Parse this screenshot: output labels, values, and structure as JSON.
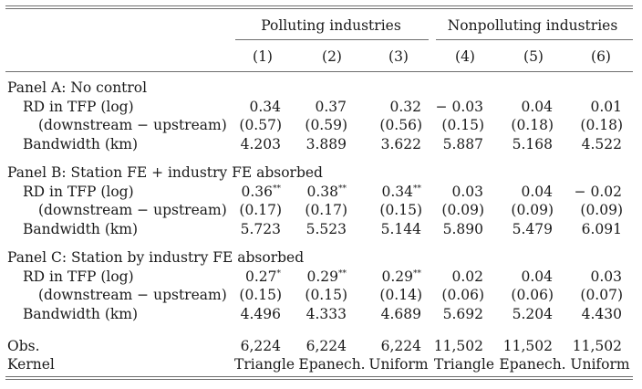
{
  "headers": {
    "group1": "Polluting industries",
    "group2": "Nonpolluting industries",
    "cols": [
      "(1)",
      "(2)",
      "(3)",
      "(4)",
      "(5)",
      "(6)"
    ]
  },
  "panels": [
    {
      "title": "Panel A: No control",
      "rd_label": "RD in TFP (log)",
      "rd": [
        "0.34",
        "0.37",
        "0.32",
        "− 0.03",
        "0.04",
        "0.01"
      ],
      "rd_stars": [
        "",
        "",
        "",
        "",
        "",
        ""
      ],
      "se_label": "(downstream − upstream)",
      "se": [
        "(0.57)",
        "(0.59)",
        "(0.56)",
        "(0.15)",
        "(0.18)",
        "(0.18)"
      ],
      "bw_label": "Bandwidth (km)",
      "bw": [
        "4.203",
        "3.889",
        "3.622",
        "5.887",
        "5.168",
        "4.522"
      ]
    },
    {
      "title": "Panel B: Station FE + industry FE absorbed",
      "rd_label": "RD in TFP (log)",
      "rd": [
        "0.36",
        "0.38",
        "0.34",
        "0.03",
        "0.04",
        "− 0.02"
      ],
      "rd_stars": [
        "**",
        "**",
        "**",
        "",
        "",
        ""
      ],
      "se_label": "(downstream − upstream)",
      "se": [
        "(0.17)",
        "(0.17)",
        "(0.15)",
        "(0.09)",
        "(0.09)",
        "(0.09)"
      ],
      "bw_label": "Bandwidth (km)",
      "bw": [
        "5.723",
        "5.523",
        "5.144",
        "5.890",
        "5.479",
        "6.091"
      ]
    },
    {
      "title": "Panel C: Station by industry FE absorbed",
      "rd_label": "RD in TFP (log)",
      "rd": [
        "0.27",
        "0.29",
        "0.29",
        "0.02",
        "0.04",
        "0.03"
      ],
      "rd_stars": [
        "*",
        "**",
        "**",
        "",
        "",
        ""
      ],
      "se_label": "(downstream − upstream)",
      "se": [
        "(0.15)",
        "(0.15)",
        "(0.14)",
        "(0.06)",
        "(0.06)",
        "(0.07)"
      ],
      "bw_label": "Bandwidth (km)",
      "bw": [
        "4.496",
        "4.333",
        "4.689",
        "5.692",
        "5.204",
        "4.430"
      ]
    }
  ],
  "obs_label": "Obs.",
  "obs": [
    "6,224",
    "6,224",
    "6,224",
    "11,502",
    "11,502",
    "11,502"
  ],
  "kernel_label": "Kernel",
  "kernel": [
    "Triangle",
    "Epanech.",
    "Uniform",
    "Triangle",
    "Epanech.",
    "Uniform"
  ]
}
